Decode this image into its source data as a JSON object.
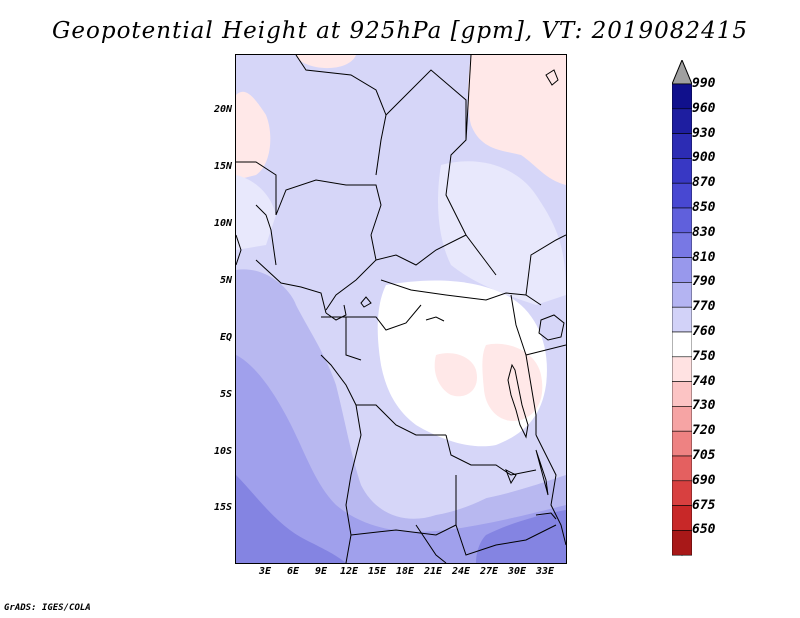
{
  "title": "Geopotential Height at 925hPa [gpm], VT: 2019082415",
  "credit": "GrADS: IGES/COLA",
  "map": {
    "lat_labels": [
      "20N",
      "15N",
      "10N",
      "5N",
      "EQ",
      "5S",
      "10S",
      "15S"
    ],
    "lon_labels": [
      "3E",
      "6E",
      "9E",
      "12E",
      "15E",
      "18E",
      "21E",
      "24E",
      "27E",
      "30E",
      "33E"
    ]
  },
  "colorbar": {
    "levels": [
      "990",
      "960",
      "930",
      "900",
      "870",
      "850",
      "830",
      "810",
      "790",
      "770",
      "760",
      "750",
      "740",
      "730",
      "720",
      "705",
      "690",
      "675",
      "650"
    ],
    "colors": [
      "#10108c",
      "#1e1ea0",
      "#2c2cb4",
      "#3838c4",
      "#4848d2",
      "#6060dc",
      "#7878e4",
      "#9898ec",
      "#b4b4f2",
      "#d2d2f8",
      "#ffffff",
      "#ffe2e2",
      "#fcc4c4",
      "#f6a4a4",
      "#ee8282",
      "#e46060",
      "#d84040",
      "#c82828",
      "#a81818"
    ],
    "over_color": "#a0a0a0",
    "under_color": "#a01818"
  },
  "palette": {
    "c790": "#d6d6f8",
    "c770": "#e8e8fc",
    "c760": "#ffffff",
    "c750": "#ffe8e8",
    "c810": "#b8b8f0",
    "c830": "#a0a0ec",
    "c850": "#8484e2"
  }
}
